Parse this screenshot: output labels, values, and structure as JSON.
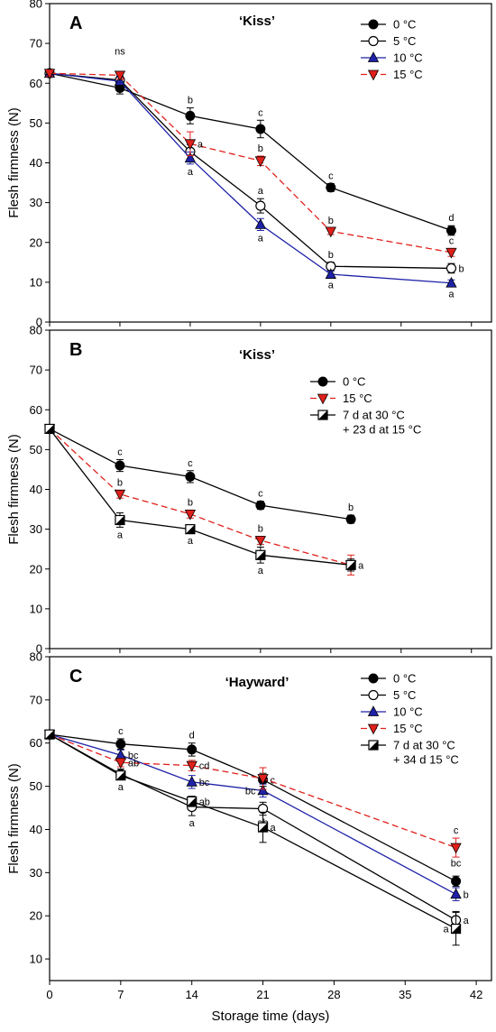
{
  "chart_data": [
    {
      "type": "line",
      "panel_label": "A",
      "title": "‘Kiss’",
      "ylabel": "Flesh firmness (N)",
      "xlabel": "",
      "ylim": [
        0,
        80
      ],
      "yticks": [
        "0",
        "10",
        "20",
        "30",
        "40",
        "50",
        "60",
        "70",
        "80"
      ],
      "x_domain": [
        0,
        40
      ],
      "legend_position": "top-right",
      "series": [
        {
          "name": "0 °C",
          "color": "#000000",
          "marker": "circle-filled",
          "dash": false,
          "x": [
            0,
            7,
            14,
            21,
            28,
            40
          ],
          "y": [
            62.5,
            58.8,
            51.8,
            48.5,
            33.8,
            23.0
          ],
          "err": [
            0.8,
            1.5,
            2.0,
            2.2,
            1.0,
            1.2
          ],
          "letters": [
            "",
            "",
            "b",
            "c",
            "c",
            "d"
          ],
          "letter_pos": [
            "",
            "",
            "above",
            "above",
            "above",
            "above"
          ]
        },
        {
          "name": "5 °C",
          "color": "#000000",
          "marker": "circle-open",
          "dash": false,
          "x": [
            0,
            7,
            14,
            21,
            28,
            40
          ],
          "y": [
            62.5,
            60.8,
            42.8,
            29.2,
            14.0,
            13.5
          ],
          "err": [
            0.8,
            1.0,
            1.8,
            1.8,
            1.0,
            1.2
          ],
          "letters": [
            "",
            "",
            "",
            "a",
            "b",
            "b"
          ],
          "letter_pos": [
            "",
            "",
            "",
            "above",
            "above",
            "right"
          ]
        },
        {
          "name": "10 °C",
          "color": "#1e22a8",
          "marker": "triangle-up",
          "dash": false,
          "x": [
            0,
            7,
            14,
            21,
            28,
            40
          ],
          "y": [
            62.5,
            60.5,
            41.2,
            24.5,
            12.0,
            9.8
          ],
          "err": [
            0.8,
            1.0,
            1.5,
            1.5,
            0.8,
            0.8
          ],
          "letters": [
            "",
            "",
            "a",
            "a",
            "a",
            "a"
          ],
          "letter_pos": [
            "",
            "",
            "below",
            "below",
            "below",
            "below"
          ]
        },
        {
          "name": "15 °C",
          "color": "#e0201b",
          "marker": "triangle-down",
          "dash": true,
          "x": [
            0,
            7,
            14,
            21,
            28,
            40
          ],
          "y": [
            62.5,
            62.0,
            44.8,
            40.5,
            22.8,
            17.5
          ],
          "err": [
            0.8,
            1.0,
            3.0,
            1.2,
            0.8,
            1.0
          ],
          "letters": [
            "",
            "",
            "a",
            "b",
            "b",
            "c"
          ],
          "letter_pos": [
            "",
            "",
            "right",
            "above",
            "above",
            "above"
          ]
        }
      ],
      "annotations": [
        {
          "text": "ns",
          "x": 7,
          "y": 67.2
        }
      ]
    },
    {
      "type": "line",
      "panel_label": "B",
      "title": "‘Kiss’",
      "ylabel": "Flesh firmness (N)",
      "xlabel": "",
      "ylim": [
        0,
        80
      ],
      "yticks": [
        "0",
        "10",
        "20",
        "30",
        "40",
        "50",
        "60",
        "70",
        "80"
      ],
      "x_domain": [
        0,
        40
      ],
      "legend_position": "top-right",
      "series": [
        {
          "name": "0 °C",
          "color": "#000000",
          "marker": "circle-filled",
          "dash": false,
          "x": [
            0,
            7,
            14,
            21,
            30
          ],
          "y": [
            55.2,
            46.0,
            43.2,
            36.0,
            32.5
          ],
          "err": [
            1.0,
            1.5,
            1.5,
            1.0,
            1.0
          ],
          "letters": [
            "",
            "c",
            "c",
            "c",
            "b"
          ],
          "letter_pos": [
            "",
            "above",
            "above",
            "above",
            "above"
          ]
        },
        {
          "name": "15 °C",
          "color": "#e0201b",
          "marker": "triangle-down",
          "dash": true,
          "x": [
            0,
            7,
            14,
            21,
            30
          ],
          "y": [
            55.2,
            38.8,
            33.8,
            27.2,
            21.0
          ],
          "err": [
            1.0,
            1.0,
            1.0,
            1.0,
            2.5
          ],
          "letters": [
            "",
            "b",
            "b",
            "b",
            ""
          ],
          "letter_pos": [
            "",
            "above",
            "above",
            "above",
            ""
          ]
        },
        {
          "name": "7 d at 30 °C",
          "name_line2": "+ 23 d at 15 °C",
          "color": "#000000",
          "marker": "square-half",
          "dash": false,
          "x": [
            0,
            7,
            14,
            21,
            30
          ],
          "y": [
            55.2,
            32.3,
            30.0,
            23.5,
            21.0
          ],
          "err": [
            1.0,
            1.8,
            1.0,
            2.0,
            1.5
          ],
          "letters": [
            "",
            "a",
            "a",
            "a",
            "a"
          ],
          "letter_pos": [
            "",
            "below",
            "below",
            "below",
            "right"
          ]
        }
      ],
      "annotations": []
    },
    {
      "type": "line",
      "panel_label": "C",
      "title": "‘Hayward’",
      "ylabel": "Flesh firmness (N)",
      "xlabel": "Storage time (days)",
      "ylim": [
        5,
        80
      ],
      "yticks": [
        "10",
        "20",
        "30",
        "40",
        "50",
        "60",
        "70",
        "80"
      ],
      "xticks": [
        "0",
        "7",
        "14",
        "21",
        "28",
        "35",
        "42"
      ],
      "x_domain": [
        0,
        42
      ],
      "legend_position": "top-right",
      "series": [
        {
          "name": "0 °C",
          "color": "#000000",
          "marker": "circle-filled",
          "dash": false,
          "x": [
            0,
            7,
            14,
            21,
            40
          ],
          "y": [
            62.0,
            59.8,
            58.5,
            51.5,
            28.0
          ],
          "err": [
            0.8,
            1.2,
            1.5,
            1.5,
            1.2
          ],
          "letters": [
            "",
            "c",
            "d",
            "c",
            ""
          ],
          "letter_pos": [
            "",
            "above",
            "above",
            "right",
            ""
          ]
        },
        {
          "name": "5 °C",
          "color": "#000000",
          "marker": "circle-open",
          "dash": false,
          "x": [
            0,
            7,
            14,
            21,
            40
          ],
          "y": [
            62.0,
            52.8,
            45.2,
            44.8,
            19.0
          ],
          "err": [
            0.8,
            1.2,
            2.0,
            1.5,
            2.0
          ],
          "letters": [
            "",
            "a",
            "a",
            "ab",
            "a"
          ],
          "letter_pos": [
            "",
            "below",
            "below",
            "below",
            "right"
          ]
        },
        {
          "name": "10 °C",
          "color": "#1e22a8",
          "marker": "triangle-up",
          "dash": false,
          "x": [
            0,
            7,
            14,
            21,
            40
          ],
          "y": [
            62.0,
            57.2,
            51.0,
            49.0,
            25.0
          ],
          "err": [
            0.8,
            1.2,
            1.5,
            1.5,
            1.5
          ],
          "letters": [
            "",
            "bc",
            "bc",
            "bc",
            "b"
          ],
          "letter_pos": [
            "",
            "right",
            "right",
            "left",
            "right"
          ]
        },
        {
          "name": "15 °C",
          "color": "#e0201b",
          "marker": "triangle-down",
          "dash": true,
          "x": [
            0,
            7,
            14,
            21,
            40
          ],
          "y": [
            62.0,
            55.5,
            54.8,
            51.8,
            35.8
          ],
          "err": [
            0.8,
            1.0,
            1.2,
            2.5,
            2.2
          ],
          "letters": [
            "",
            "ab",
            "cd",
            "",
            "c"
          ],
          "letter_pos": [
            "",
            "right",
            "right",
            "",
            "above"
          ]
        },
        {
          "name": "7 d at 30 °C",
          "name_line2": "+ 34 d 15 °C",
          "color": "#000000",
          "marker": "square-half",
          "dash": false,
          "x": [
            0,
            7,
            14,
            21,
            40
          ],
          "y": [
            62.0,
            52.5,
            46.5,
            40.5,
            17.0
          ],
          "err": [
            0.8,
            1.0,
            1.2,
            3.5,
            3.8
          ],
          "letters": [
            "",
            "",
            "ab",
            "a",
            "a"
          ],
          "letter_pos": [
            "",
            "",
            "right",
            "right",
            "left"
          ]
        }
      ],
      "annotations": [
        {
          "text": "bc",
          "x": 40,
          "y": 31.4
        }
      ]
    }
  ]
}
